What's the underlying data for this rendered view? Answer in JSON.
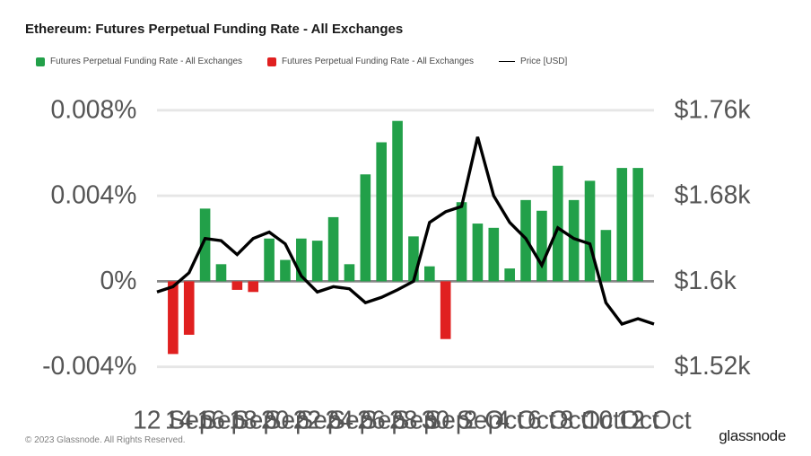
{
  "title": "Ethereum: Futures Perpetual Funding Rate - All Exchanges",
  "legend": {
    "pos": {
      "label": "Futures Perpetual Funding Rate - All Exchanges",
      "color": "#22a049"
    },
    "neg": {
      "label": "Futures Perpetual Funding Rate - All Exchanges",
      "color": "#e02020"
    },
    "price": {
      "label": "Price [USD]",
      "color": "#000000"
    }
  },
  "copyright": "© 2023 Glassnode. All Rights Reserved.",
  "brand": "glassnode",
  "chart": {
    "type": "bar+line",
    "background_color": "#ffffff",
    "grid_color": "#e6e6e6",
    "title_fontsize": 15,
    "label_fontsize": 10,
    "x_labels": [
      "12 Sep",
      "14 Sep",
      "16 Sep",
      "18 Sep",
      "20 Sep",
      "22 Sep",
      "24 Sep",
      "26 Sep",
      "28 Sep",
      "30 Sep",
      "2 Oct",
      "4 Oct",
      "6 Oct",
      "8 Oct",
      "10 Oct",
      "12 Oct"
    ],
    "y_left": {
      "ticks": [
        -0.004,
        0,
        0.004,
        0.008
      ],
      "tick_labels": [
        "-0.004%",
        "0%",
        "0.004%",
        "0.008%"
      ],
      "min": -0.005,
      "max": 0.009
    },
    "y_right": {
      "ticks": [
        1520,
        1600,
        1680,
        1760
      ],
      "tick_labels": [
        "$1.52k",
        "$1.6k",
        "$1.68k",
        "$1.76k"
      ],
      "min": 1500,
      "max": 1780
    },
    "bars": [
      {
        "x": "12 Sep",
        "v": -0.0034
      },
      {
        "x": "13 Sep",
        "v": -0.0025
      },
      {
        "x": "14 Sep",
        "v": 0.0034
      },
      {
        "x": "15 Sep",
        "v": 0.0008
      },
      {
        "x": "16 Sep",
        "v": -0.0004
      },
      {
        "x": "17 Sep",
        "v": -0.0005
      },
      {
        "x": "18 Sep",
        "v": 0.002
      },
      {
        "x": "19 Sep",
        "v": 0.001
      },
      {
        "x": "20 Sep",
        "v": 0.002
      },
      {
        "x": "21 Sep",
        "v": 0.0019
      },
      {
        "x": "22 Sep",
        "v": 0.003
      },
      {
        "x": "23 Sep",
        "v": 0.0008
      },
      {
        "x": "24 Sep",
        "v": 0.005
      },
      {
        "x": "25 Sep",
        "v": 0.0065
      },
      {
        "x": "26 Sep",
        "v": 0.0075
      },
      {
        "x": "27 Sep",
        "v": 0.0021
      },
      {
        "x": "28 Sep",
        "v": 0.0007
      },
      {
        "x": "29 Sep",
        "v": -0.0027
      },
      {
        "x": "30 Sep",
        "v": 0.0037
      },
      {
        "x": "1 Oct",
        "v": 0.0027
      },
      {
        "x": "2 Oct",
        "v": 0.0025
      },
      {
        "x": "3 Oct",
        "v": 0.0006
      },
      {
        "x": "4 Oct",
        "v": 0.0038
      },
      {
        "x": "5 Oct",
        "v": 0.0033
      },
      {
        "x": "6 Oct",
        "v": 0.0054
      },
      {
        "x": "7 Oct",
        "v": 0.0038
      },
      {
        "x": "8 Oct",
        "v": 0.0047
      },
      {
        "x": "9 Oct",
        "v": 0.0024
      },
      {
        "x": "10 Oct",
        "v": 0.0053
      },
      {
        "x": "11 Oct",
        "v": 0.0053
      }
    ],
    "bar_width": 0.65,
    "price": [
      {
        "x": "11 Sep",
        "p": 1590
      },
      {
        "x": "12 Sep",
        "p": 1595
      },
      {
        "x": "13 Sep",
        "p": 1608
      },
      {
        "x": "14 Sep",
        "p": 1640
      },
      {
        "x": "15 Sep",
        "p": 1638
      },
      {
        "x": "16 Sep",
        "p": 1625
      },
      {
        "x": "17 Sep",
        "p": 1640
      },
      {
        "x": "18 Sep",
        "p": 1646
      },
      {
        "x": "19 Sep",
        "p": 1635
      },
      {
        "x": "20 Sep",
        "p": 1605
      },
      {
        "x": "21 Sep",
        "p": 1590
      },
      {
        "x": "22 Sep",
        "p": 1595
      },
      {
        "x": "23 Sep",
        "p": 1593
      },
      {
        "x": "24 Sep",
        "p": 1580
      },
      {
        "x": "25 Sep",
        "p": 1585
      },
      {
        "x": "26 Sep",
        "p": 1592
      },
      {
        "x": "27 Sep",
        "p": 1600
      },
      {
        "x": "28 Sep",
        "p": 1655
      },
      {
        "x": "29 Sep",
        "p": 1665
      },
      {
        "x": "30 Sep",
        "p": 1670
      },
      {
        "x": "1 Oct",
        "p": 1735
      },
      {
        "x": "2 Oct",
        "p": 1680
      },
      {
        "x": "3 Oct",
        "p": 1655
      },
      {
        "x": "4 Oct",
        "p": 1640
      },
      {
        "x": "5 Oct",
        "p": 1615
      },
      {
        "x": "6 Oct",
        "p": 1650
      },
      {
        "x": "7 Oct",
        "p": 1640
      },
      {
        "x": "8 Oct",
        "p": 1635
      },
      {
        "x": "9 Oct",
        "p": 1580
      },
      {
        "x": "10 Oct",
        "p": 1560
      },
      {
        "x": "11 Oct",
        "p": 1565
      },
      {
        "x": "12 Oct",
        "p": 1560
      }
    ]
  }
}
